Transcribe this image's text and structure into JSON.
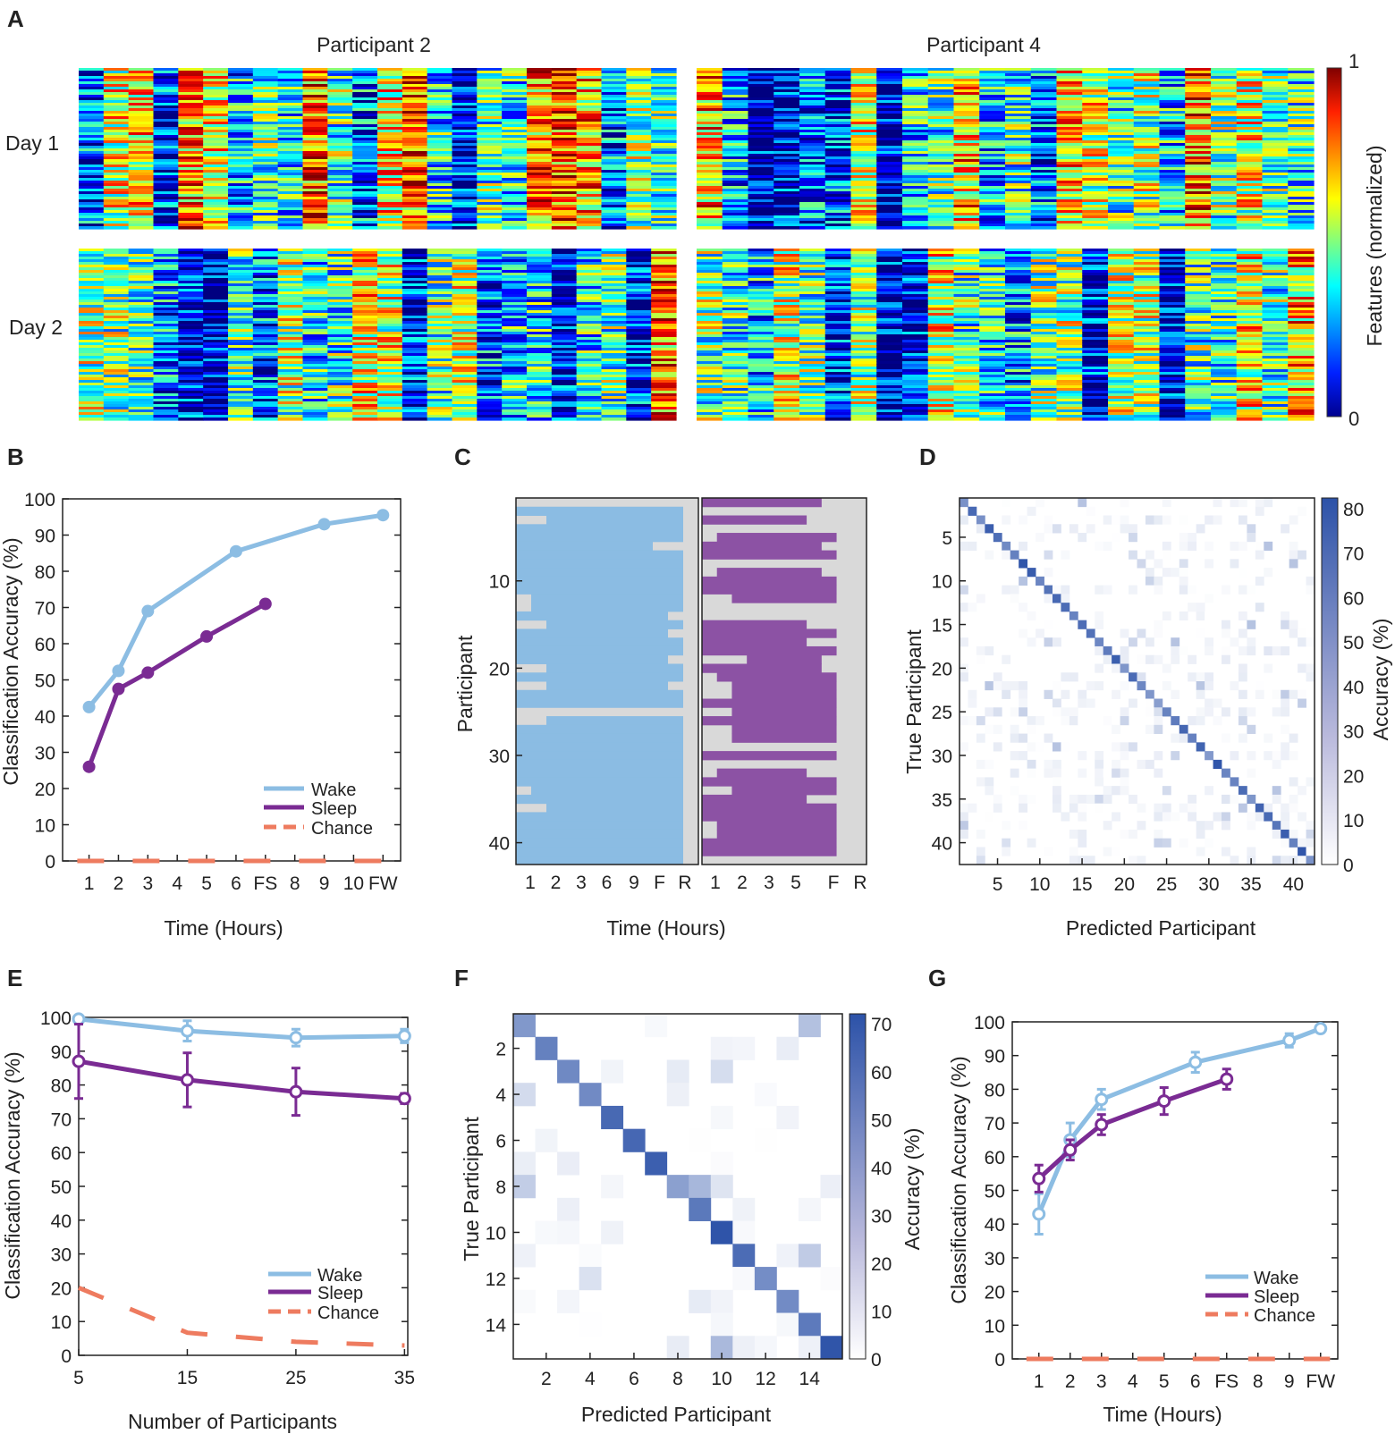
{
  "chart_data": [
    {
      "id": "A",
      "type": "heatmap",
      "panel_label": "A",
      "titles": [
        "Participant 2",
        "Participant 4"
      ],
      "row_labels": [
        "Day 1",
        "Day 2"
      ],
      "colorbar": {
        "label": "Features (normalized)",
        "min_label": "0",
        "max_label": "1",
        "range": [
          0,
          1
        ]
      }
    },
    {
      "id": "B",
      "type": "line",
      "panel_label": "B",
      "xlabel": "Time (Hours)",
      "ylabel": "Classification Accuracy (%)",
      "ylim": [
        0,
        100
      ],
      "yticks": [
        "0",
        "10",
        "20",
        "30",
        "40",
        "50",
        "60",
        "70",
        "80",
        "90",
        "100"
      ],
      "xticks": [
        "1",
        "2",
        "3",
        "4",
        "5",
        "6",
        "FS",
        "8",
        "9",
        "10",
        "FW"
      ],
      "series": [
        {
          "name": "Wake",
          "color": "#8cbde3",
          "x": [
            1,
            2,
            3,
            6,
            9,
            11
          ],
          "values": [
            42.5,
            52.5,
            69,
            85.5,
            93,
            95.5
          ]
        },
        {
          "name": "Sleep",
          "color": "#7a2b93",
          "x": [
            1,
            2,
            3,
            5,
            7
          ],
          "values": [
            26,
            47.5,
            52,
            62,
            71
          ]
        },
        {
          "name": "Chance",
          "color": "#ee7b5f",
          "x": [
            0.6,
            11.5
          ],
          "values": [
            0,
            0
          ],
          "dashed": true
        }
      ],
      "legend": [
        "Wake",
        "Sleep",
        "Chance"
      ],
      "legend_position": "lower-right"
    },
    {
      "id": "C",
      "type": "heatmap",
      "panel_label": "C",
      "xlabel": "Time (Hours)",
      "ylabel": "Participant",
      "yticks": [
        "10",
        "20",
        "30",
        "40"
      ],
      "xticks_left": [
        "1",
        "2",
        "3",
        "6",
        "9",
        "F",
        "R"
      ],
      "xticks_right": [
        "1",
        "2",
        "3",
        "5",
        "F",
        "R"
      ],
      "colors": {
        "wake": "#8bbce3",
        "sleep": "#8c52a4",
        "blank": "#d9d9d9"
      }
    },
    {
      "id": "D",
      "type": "heatmap",
      "panel_label": "D",
      "xlabel": "Predicted Participant",
      "ylabel": "True Participant",
      "ticks": [
        "5",
        "10",
        "15",
        "20",
        "25",
        "30",
        "35",
        "40"
      ],
      "colorbar": {
        "label": "Accuracy (%)",
        "ticks": [
          "0",
          "10",
          "20",
          "30",
          "40",
          "50",
          "60",
          "70",
          "80"
        ],
        "range": [
          0,
          80
        ]
      }
    },
    {
      "id": "E",
      "type": "line",
      "panel_label": "E",
      "xlabel": "Number of Participants",
      "ylabel": "Classification Accuracy (%)",
      "ylim": [
        0,
        100
      ],
      "yticks": [
        "0",
        "10",
        "20",
        "30",
        "40",
        "50",
        "60",
        "70",
        "80",
        "90",
        "100"
      ],
      "xticks": [
        "5",
        "15",
        "25",
        "35"
      ],
      "series": [
        {
          "name": "Wake",
          "color": "#8cbde3",
          "x": [
            5,
            15,
            25,
            35
          ],
          "values": [
            99.5,
            96,
            94,
            94.5
          ],
          "err": [
            0.5,
            3,
            2.5,
            2
          ]
        },
        {
          "name": "Sleep",
          "color": "#7a2b93",
          "x": [
            5,
            15,
            25,
            35
          ],
          "values": [
            87,
            81.5,
            78,
            76
          ],
          "err": [
            11,
            8,
            7,
            1.5
          ]
        },
        {
          "name": "Chance",
          "color": "#ee7b5f",
          "x": [
            5,
            15,
            25,
            35
          ],
          "values": [
            20,
            6.7,
            4,
            2.9
          ],
          "dashed": true
        }
      ],
      "legend": [
        "Wake",
        "Sleep",
        "Chance"
      ],
      "legend_position": "lower-right"
    },
    {
      "id": "F",
      "type": "heatmap",
      "panel_label": "F",
      "xlabel": "Predicted Participant",
      "ylabel": "True Participant",
      "ticks": [
        "2",
        "4",
        "6",
        "8",
        "10",
        "12",
        "14"
      ],
      "colorbar": {
        "label": "Accuracy (%)",
        "ticks": [
          "0",
          "10",
          "20",
          "30",
          "40",
          "50",
          "60",
          "70"
        ],
        "range": [
          0,
          70
        ]
      }
    },
    {
      "id": "G",
      "type": "line",
      "panel_label": "G",
      "xlabel": "Time (Hours)",
      "ylabel": "Classification Accuracy (%)",
      "ylim": [
        0,
        100
      ],
      "yticks": [
        "0",
        "10",
        "20",
        "30",
        "40",
        "50",
        "60",
        "70",
        "80",
        "90",
        "100"
      ],
      "xticks": [
        "1",
        "2",
        "3",
        "4",
        "5",
        "6",
        "FS",
        "8",
        "9",
        "FW"
      ],
      "series": [
        {
          "name": "Wake",
          "color": "#8cbde3",
          "x": [
            1,
            2,
            3,
            6,
            9,
            10
          ],
          "values": [
            43,
            65,
            77,
            88,
            94.5,
            98
          ],
          "err": [
            6,
            5,
            3,
            3,
            2,
            0.5
          ]
        },
        {
          "name": "Sleep",
          "color": "#7a2b93",
          "x": [
            1,
            2,
            3,
            5,
            7
          ],
          "values": [
            53.5,
            62,
            69.5,
            76.5,
            83
          ],
          "err": [
            4,
            3,
            3,
            4,
            3
          ]
        },
        {
          "name": "Chance",
          "color": "#ee7b5f",
          "x": [
            0.6,
            10.3
          ],
          "values": [
            0,
            0
          ],
          "dashed": true
        }
      ],
      "legend": [
        "Wake",
        "Sleep",
        "Chance"
      ],
      "legend_position": "lower-right"
    }
  ]
}
